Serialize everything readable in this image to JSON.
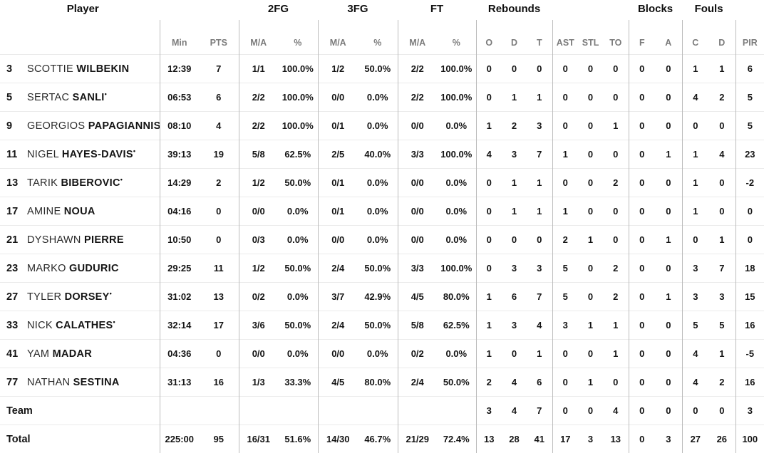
{
  "colors": {
    "background": "#ffffff",
    "text": "#141414",
    "muted_header": "#7b7b7b",
    "vertical_divider": "#bcbcbc",
    "row_separator": "#ebebeb"
  },
  "table": {
    "starter_marker": "•",
    "group_headers": {
      "fg2": "2FG",
      "fg3": "3FG",
      "ft": "FT",
      "rebounds": "Rebounds",
      "blocks": "Blocks",
      "fouls": "Fouls"
    },
    "columns": {
      "player": "Player",
      "min": "Min",
      "pts": "PTS",
      "ma": "M/A",
      "pct": "%",
      "reb_o": "O",
      "reb_d": "D",
      "reb_t": "T",
      "ast": "AST",
      "stl": "STL",
      "to": "TO",
      "blk_f": "F",
      "blk_a": "A",
      "foul_c": "C",
      "foul_d": "D",
      "pir": "PIR"
    },
    "rows": [
      {
        "num": "3",
        "first": "SCOTTIE",
        "last": "WILBEKIN",
        "starter": false,
        "min": "12:39",
        "pts": 7,
        "fg2_ma": "1/1",
        "fg2_pct": "100.0%",
        "fg3_ma": "1/2",
        "fg3_pct": "50.0%",
        "ft_ma": "2/2",
        "ft_pct": "100.0%",
        "reb_o": 0,
        "reb_d": 0,
        "reb_t": 0,
        "ast": 0,
        "stl": 0,
        "to": 0,
        "blk_f": 0,
        "blk_a": 0,
        "foul_c": 1,
        "foul_d": 1,
        "pir": 6
      },
      {
        "num": "5",
        "first": "SERTAC",
        "last": "SANLI",
        "starter": true,
        "min": "06:53",
        "pts": 6,
        "fg2_ma": "2/2",
        "fg2_pct": "100.0%",
        "fg3_ma": "0/0",
        "fg3_pct": "0.0%",
        "ft_ma": "2/2",
        "ft_pct": "100.0%",
        "reb_o": 0,
        "reb_d": 1,
        "reb_t": 1,
        "ast": 0,
        "stl": 0,
        "to": 0,
        "blk_f": 0,
        "blk_a": 0,
        "foul_c": 4,
        "foul_d": 2,
        "pir": 5
      },
      {
        "num": "9",
        "first": "GEORGIOS",
        "last": "PAPAGIANNIS",
        "starter": false,
        "min": "08:10",
        "pts": 4,
        "fg2_ma": "2/2",
        "fg2_pct": "100.0%",
        "fg3_ma": "0/1",
        "fg3_pct": "0.0%",
        "ft_ma": "0/0",
        "ft_pct": "0.0%",
        "reb_o": 1,
        "reb_d": 2,
        "reb_t": 3,
        "ast": 0,
        "stl": 0,
        "to": 1,
        "blk_f": 0,
        "blk_a": 0,
        "foul_c": 0,
        "foul_d": 0,
        "pir": 5
      },
      {
        "num": "11",
        "first": "NIGEL",
        "last": "HAYES-DAVIS",
        "starter": true,
        "min": "39:13",
        "pts": 19,
        "fg2_ma": "5/8",
        "fg2_pct": "62.5%",
        "fg3_ma": "2/5",
        "fg3_pct": "40.0%",
        "ft_ma": "3/3",
        "ft_pct": "100.0%",
        "reb_o": 4,
        "reb_d": 3,
        "reb_t": 7,
        "ast": 1,
        "stl": 0,
        "to": 0,
        "blk_f": 0,
        "blk_a": 1,
        "foul_c": 1,
        "foul_d": 4,
        "pir": 23
      },
      {
        "num": "13",
        "first": "TARIK",
        "last": "BIBEROVIC",
        "starter": true,
        "min": "14:29",
        "pts": 2,
        "fg2_ma": "1/2",
        "fg2_pct": "50.0%",
        "fg3_ma": "0/1",
        "fg3_pct": "0.0%",
        "ft_ma": "0/0",
        "ft_pct": "0.0%",
        "reb_o": 0,
        "reb_d": 1,
        "reb_t": 1,
        "ast": 0,
        "stl": 0,
        "to": 2,
        "blk_f": 0,
        "blk_a": 0,
        "foul_c": 1,
        "foul_d": 0,
        "pir": -2
      },
      {
        "num": "17",
        "first": "AMINE",
        "last": "NOUA",
        "starter": false,
        "min": "04:16",
        "pts": 0,
        "fg2_ma": "0/0",
        "fg2_pct": "0.0%",
        "fg3_ma": "0/1",
        "fg3_pct": "0.0%",
        "ft_ma": "0/0",
        "ft_pct": "0.0%",
        "reb_o": 0,
        "reb_d": 1,
        "reb_t": 1,
        "ast": 1,
        "stl": 0,
        "to": 0,
        "blk_f": 0,
        "blk_a": 0,
        "foul_c": 1,
        "foul_d": 0,
        "pir": 0
      },
      {
        "num": "21",
        "first": "DYSHAWN",
        "last": "PIERRE",
        "starter": false,
        "min": "10:50",
        "pts": 0,
        "fg2_ma": "0/3",
        "fg2_pct": "0.0%",
        "fg3_ma": "0/0",
        "fg3_pct": "0.0%",
        "ft_ma": "0/0",
        "ft_pct": "0.0%",
        "reb_o": 0,
        "reb_d": 0,
        "reb_t": 0,
        "ast": 2,
        "stl": 1,
        "to": 0,
        "blk_f": 0,
        "blk_a": 1,
        "foul_c": 0,
        "foul_d": 1,
        "pir": 0
      },
      {
        "num": "23",
        "first": "MARKO",
        "last": "GUDURIC",
        "starter": false,
        "min": "29:25",
        "pts": 11,
        "fg2_ma": "1/2",
        "fg2_pct": "50.0%",
        "fg3_ma": "2/4",
        "fg3_pct": "50.0%",
        "ft_ma": "3/3",
        "ft_pct": "100.0%",
        "reb_o": 0,
        "reb_d": 3,
        "reb_t": 3,
        "ast": 5,
        "stl": 0,
        "to": 2,
        "blk_f": 0,
        "blk_a": 0,
        "foul_c": 3,
        "foul_d": 7,
        "pir": 18
      },
      {
        "num": "27",
        "first": "TYLER",
        "last": "DORSEY",
        "starter": true,
        "min": "31:02",
        "pts": 13,
        "fg2_ma": "0/2",
        "fg2_pct": "0.0%",
        "fg3_ma": "3/7",
        "fg3_pct": "42.9%",
        "ft_ma": "4/5",
        "ft_pct": "80.0%",
        "reb_o": 1,
        "reb_d": 6,
        "reb_t": 7,
        "ast": 5,
        "stl": 0,
        "to": 2,
        "blk_f": 0,
        "blk_a": 1,
        "foul_c": 3,
        "foul_d": 3,
        "pir": 15
      },
      {
        "num": "33",
        "first": "NICK",
        "last": "CALATHES",
        "starter": true,
        "min": "32:14",
        "pts": 17,
        "fg2_ma": "3/6",
        "fg2_pct": "50.0%",
        "fg3_ma": "2/4",
        "fg3_pct": "50.0%",
        "ft_ma": "5/8",
        "ft_pct": "62.5%",
        "reb_o": 1,
        "reb_d": 3,
        "reb_t": 4,
        "ast": 3,
        "stl": 1,
        "to": 1,
        "blk_f": 0,
        "blk_a": 0,
        "foul_c": 5,
        "foul_d": 5,
        "pir": 16
      },
      {
        "num": "41",
        "first": "YAM",
        "last": "MADAR",
        "starter": false,
        "min": "04:36",
        "pts": 0,
        "fg2_ma": "0/0",
        "fg2_pct": "0.0%",
        "fg3_ma": "0/0",
        "fg3_pct": "0.0%",
        "ft_ma": "0/2",
        "ft_pct": "0.0%",
        "reb_o": 1,
        "reb_d": 0,
        "reb_t": 1,
        "ast": 0,
        "stl": 0,
        "to": 1,
        "blk_f": 0,
        "blk_a": 0,
        "foul_c": 4,
        "foul_d": 1,
        "pir": -5
      },
      {
        "num": "77",
        "first": "NATHAN",
        "last": "SESTINA",
        "starter": false,
        "min": "31:13",
        "pts": 16,
        "fg2_ma": "1/3",
        "fg2_pct": "33.3%",
        "fg3_ma": "4/5",
        "fg3_pct": "80.0%",
        "ft_ma": "2/4",
        "ft_pct": "50.0%",
        "reb_o": 2,
        "reb_d": 4,
        "reb_t": 6,
        "ast": 0,
        "stl": 1,
        "to": 0,
        "blk_f": 0,
        "blk_a": 0,
        "foul_c": 4,
        "foul_d": 2,
        "pir": 16
      }
    ],
    "team_row": {
      "label": "Team",
      "min": "",
      "pts": "",
      "fg2_ma": "",
      "fg2_pct": "",
      "fg3_ma": "",
      "fg3_pct": "",
      "ft_ma": "",
      "ft_pct": "",
      "reb_o": 3,
      "reb_d": 4,
      "reb_t": 7,
      "ast": 0,
      "stl": 0,
      "to": 4,
      "blk_f": 0,
      "blk_a": 0,
      "foul_c": 0,
      "foul_d": 0,
      "pir": 3
    },
    "total_row": {
      "label": "Total",
      "min": "225:00",
      "pts": 95,
      "fg2_ma": "16/31",
      "fg2_pct": "51.6%",
      "fg3_ma": "14/30",
      "fg3_pct": "46.7%",
      "ft_ma": "21/29",
      "ft_pct": "72.4%",
      "reb_o": 13,
      "reb_d": 28,
      "reb_t": 41,
      "ast": 17,
      "stl": 3,
      "to": 13,
      "blk_f": 0,
      "blk_a": 3,
      "foul_c": 27,
      "foul_d": 26,
      "pir": 100
    }
  }
}
